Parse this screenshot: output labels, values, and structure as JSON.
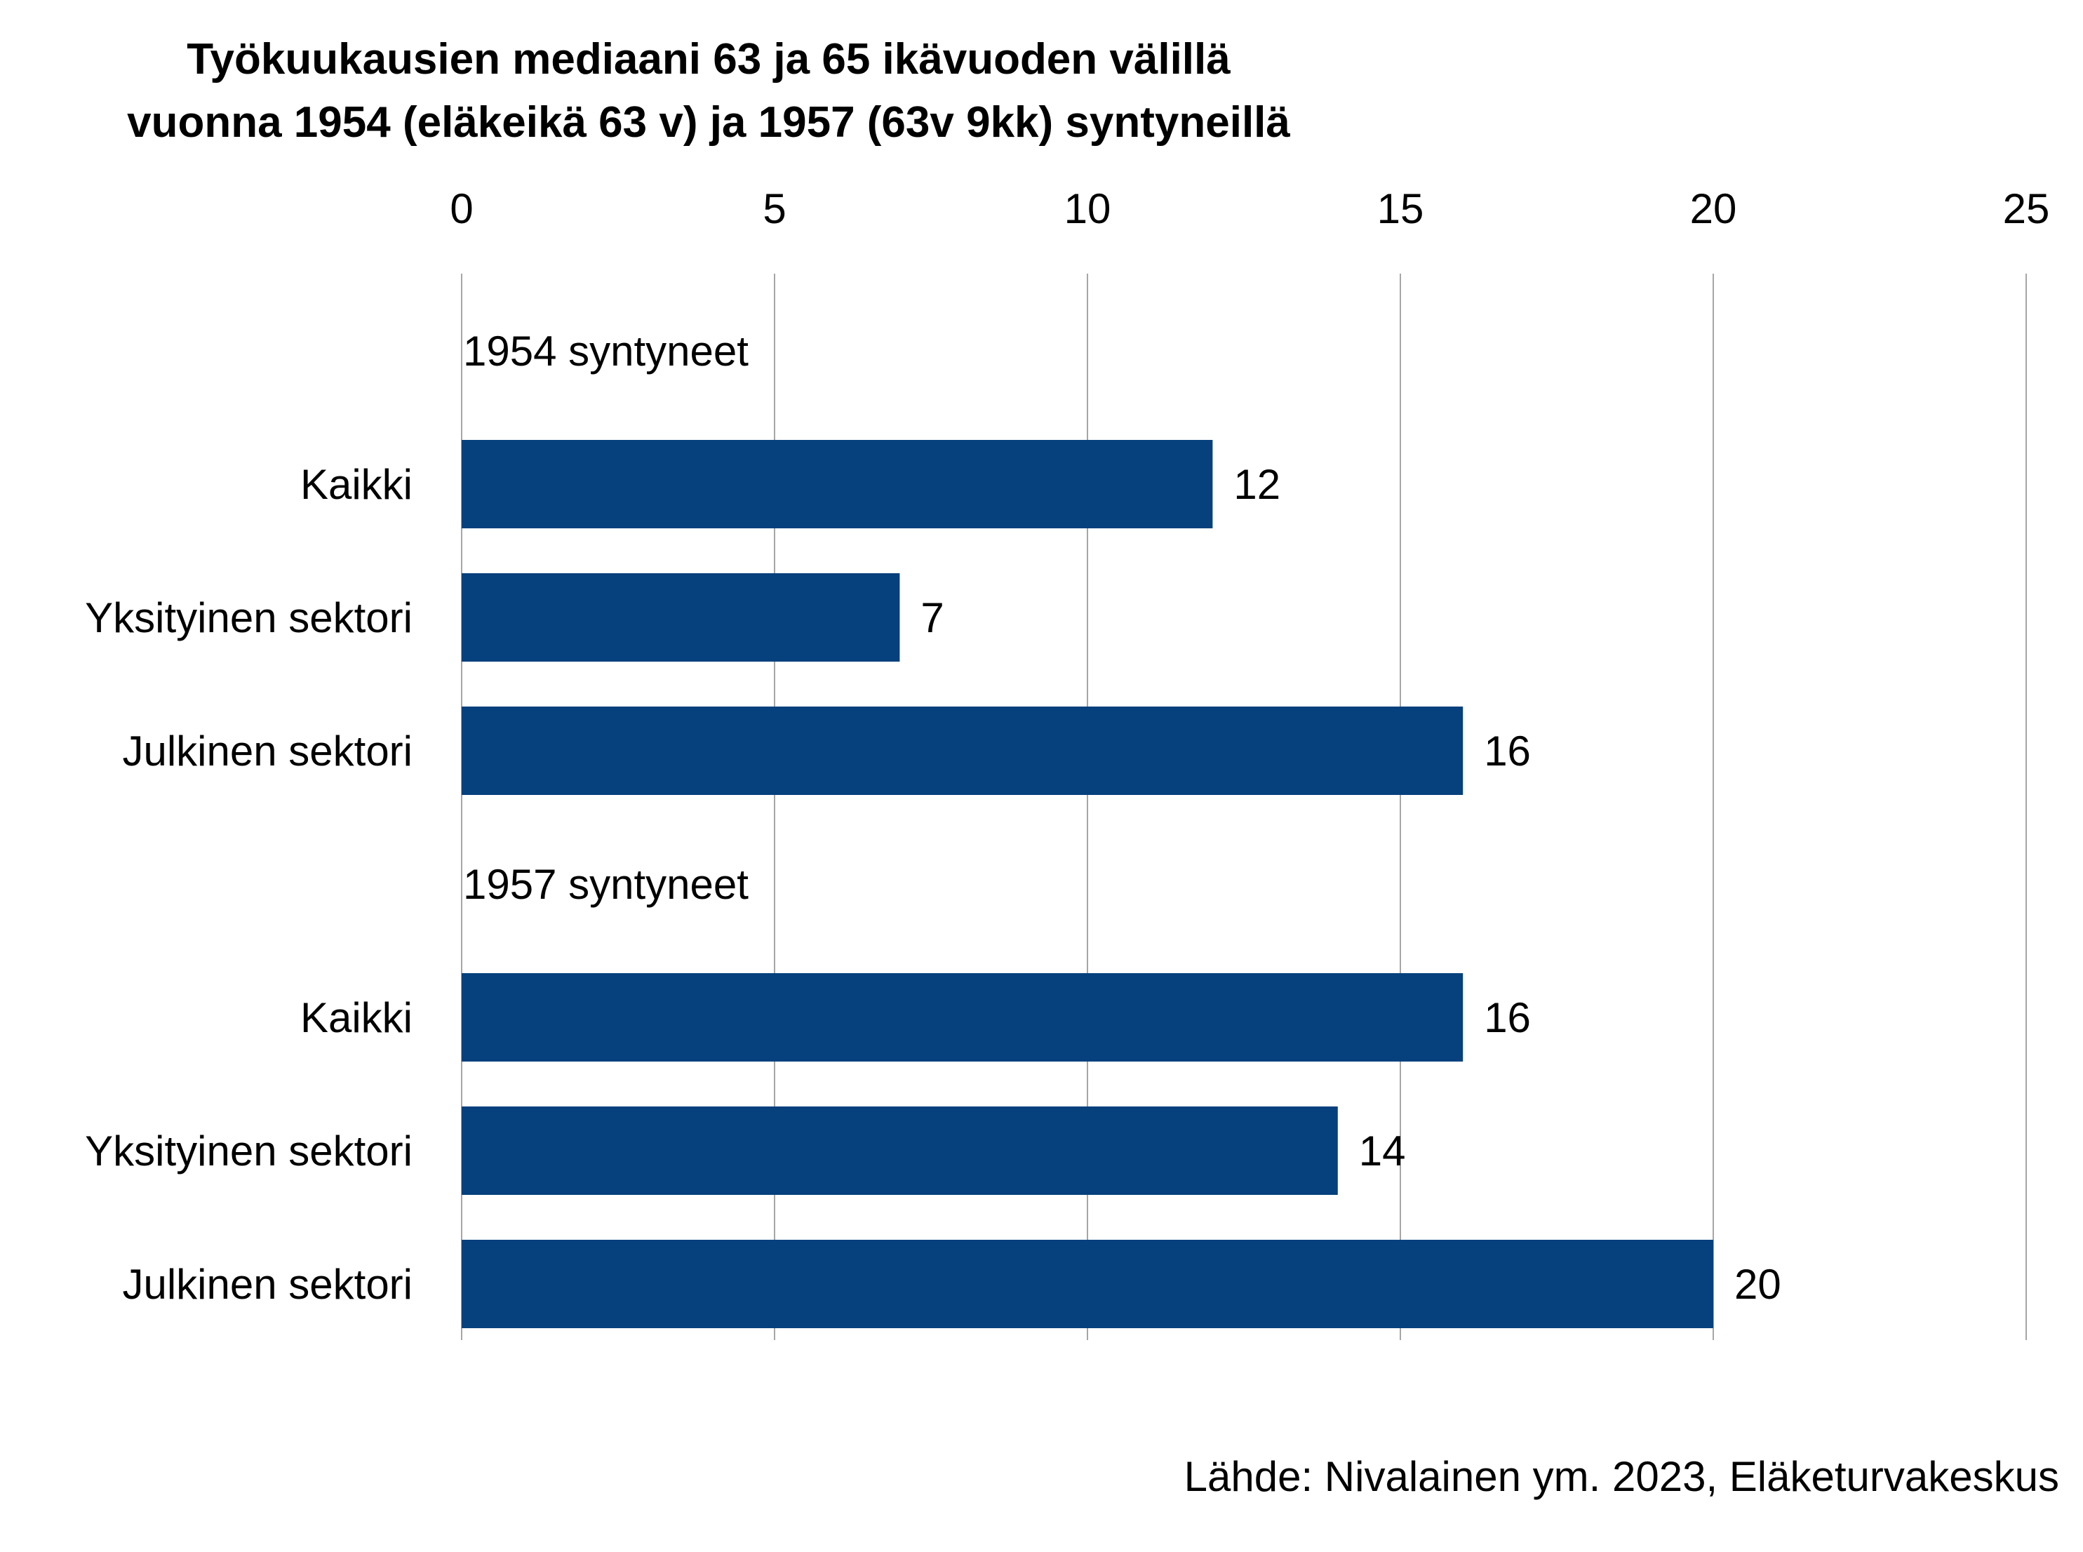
{
  "chart_data": {
    "type": "bar",
    "orientation": "horizontal",
    "title": [
      "Työkuukausien mediaani 63 ja 65 ikävuoden välillä",
      "vuonna 1954 (eläkeikä 63 v) ja 1957 (63v 9kk) syntyneillä"
    ],
    "xlim": [
      0,
      25
    ],
    "x_ticks": [
      0,
      5,
      10,
      15,
      20,
      25
    ],
    "x_axis_position": "top",
    "grid": "vertical",
    "bar_color": "#06407D",
    "groups": [
      {
        "label": "1954 syntyneet",
        "categories": [
          "Kaikki",
          "Yksityinen sektori",
          "Julkinen sektori"
        ],
        "values": [
          12,
          7,
          16
        ]
      },
      {
        "label": "1957 syntyneet",
        "categories": [
          "Kaikki",
          "Yksityinen sektori",
          "Julkinen sektori"
        ],
        "values": [
          16,
          14,
          20
        ]
      }
    ],
    "data_labels": true
  },
  "source": "Lähde: Nivalainen ym. 2023, Eläketurvakeskus"
}
